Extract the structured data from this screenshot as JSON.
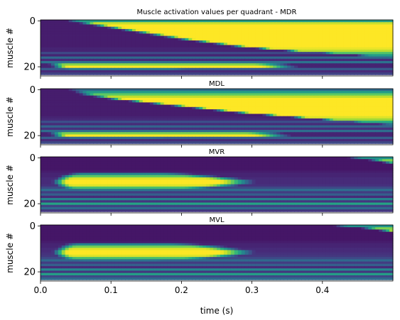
{
  "figure": {
    "title": "Muscle activation values per quadrant - MDR",
    "xlabel": "time (s)"
  },
  "chart_data": {
    "type": "heatmap",
    "colormap": "viridis",
    "value_range": [
      0,
      1
    ],
    "colormap_stops": [
      "#440154",
      "#472d7b",
      "#3b528b",
      "#2c728e",
      "#21918c",
      "#28ae80",
      "#5ec962",
      "#addc30",
      "#fde725"
    ],
    "xlim": [
      0,
      0.5
    ],
    "ylim": [
      24,
      -0.5
    ],
    "x_ticks": [
      0.0,
      0.1,
      0.2,
      0.3,
      0.4
    ],
    "x_tick_labels": [
      "0.0",
      "0.1",
      "0.2",
      "0.3",
      "0.4"
    ],
    "y_ticks": [
      0,
      20
    ],
    "y_tick_labels": [
      "0",
      "20"
    ],
    "ylabel": "muscle #",
    "rows": 24,
    "panels": [
      {
        "title": "",
        "muscles": [
          {
            "on": 0.04,
            "off": 0.5,
            "level": 0.55
          },
          {
            "on": 0.06,
            "off": 0.5,
            "level": 0.92
          },
          {
            "on": 0.08,
            "off": 0.5,
            "level": 1.0
          },
          {
            "on": 0.1,
            "off": 0.5,
            "level": 1.0
          },
          {
            "on": 0.12,
            "off": 0.5,
            "level": 1.0
          },
          {
            "on": 0.14,
            "off": 0.5,
            "level": 1.0
          },
          {
            "on": 0.16,
            "off": 0.5,
            "level": 1.0
          },
          {
            "on": 0.18,
            "off": 0.5,
            "level": 1.0
          },
          {
            "on": 0.2,
            "off": 0.5,
            "level": 1.0
          },
          {
            "on": 0.225,
            "off": 0.5,
            "level": 1.0
          },
          {
            "on": 0.25,
            "off": 0.5,
            "level": 1.0
          },
          {
            "on": 0.275,
            "off": 0.5,
            "level": 1.0
          },
          {
            "on": 0.31,
            "off": 0.5,
            "level": 0.97
          },
          {
            "on": 0.35,
            "off": 0.5,
            "level": 0.9
          },
          {
            "on": 0.4,
            "off": 0.5,
            "level": 0.72
          },
          {
            "on": 0.45,
            "off": 0.5,
            "level": 0.55
          },
          {
            "on": 0.48,
            "off": 0.5,
            "level": 0.38
          },
          {
            "on": 0.5,
            "off": 0.5,
            "level": 0.0
          },
          {
            "on": 0.5,
            "off": 0.5,
            "level": 0.0
          },
          {
            "on": 0.015,
            "off": 0.32,
            "level": 0.82
          },
          {
            "on": 0.02,
            "off": 0.33,
            "level": 1.0
          },
          {
            "on": 0.025,
            "off": 0.2,
            "level": 0.4
          },
          {
            "on": 0.5,
            "off": 0.5,
            "level": 0.0
          },
          {
            "on": 0.5,
            "off": 0.5,
            "level": 0.0
          }
        ],
        "baseline": [
          0.08,
          0.08,
          0.08,
          0.08,
          0.08,
          0.08,
          0.08,
          0.08,
          0.08,
          0.08,
          0.08,
          0.08,
          0.1,
          0.1,
          0.22,
          0.1,
          0.34,
          0.12,
          0.38,
          0.1,
          0.1,
          0.28,
          0.12,
          0.2
        ]
      },
      {
        "title": "MDL",
        "muscles": [
          {
            "on": 0.04,
            "off": 0.5,
            "level": 0.35
          },
          {
            "on": 0.05,
            "off": 0.5,
            "level": 0.55
          },
          {
            "on": 0.06,
            "off": 0.5,
            "level": 0.75
          },
          {
            "on": 0.08,
            "off": 0.5,
            "level": 0.9
          },
          {
            "on": 0.1,
            "off": 0.5,
            "level": 1.0
          },
          {
            "on": 0.13,
            "off": 0.5,
            "level": 1.0
          },
          {
            "on": 0.16,
            "off": 0.5,
            "level": 1.0
          },
          {
            "on": 0.19,
            "off": 0.5,
            "level": 1.0
          },
          {
            "on": 0.22,
            "off": 0.5,
            "level": 1.0
          },
          {
            "on": 0.25,
            "off": 0.5,
            "level": 1.0
          },
          {
            "on": 0.28,
            "off": 0.5,
            "level": 1.0
          },
          {
            "on": 0.32,
            "off": 0.5,
            "level": 1.0
          },
          {
            "on": 0.36,
            "off": 0.5,
            "level": 0.95
          },
          {
            "on": 0.4,
            "off": 0.5,
            "level": 0.85
          },
          {
            "on": 0.44,
            "off": 0.5,
            "level": 0.62
          },
          {
            "on": 0.48,
            "off": 0.5,
            "level": 0.4
          },
          {
            "on": 0.5,
            "off": 0.5,
            "level": 0.0
          },
          {
            "on": 0.5,
            "off": 0.5,
            "level": 0.0
          },
          {
            "on": 0.5,
            "off": 0.5,
            "level": 0.0
          },
          {
            "on": 0.015,
            "off": 0.31,
            "level": 0.8
          },
          {
            "on": 0.02,
            "off": 0.32,
            "level": 1.0
          },
          {
            "on": 0.025,
            "off": 0.18,
            "level": 0.35
          },
          {
            "on": 0.5,
            "off": 0.5,
            "level": 0.0
          },
          {
            "on": 0.5,
            "off": 0.5,
            "level": 0.0
          }
        ],
        "baseline": [
          0.08,
          0.08,
          0.08,
          0.08,
          0.08,
          0.08,
          0.08,
          0.08,
          0.08,
          0.08,
          0.08,
          0.08,
          0.1,
          0.12,
          0.24,
          0.12,
          0.32,
          0.14,
          0.36,
          0.1,
          0.1,
          0.3,
          0.12,
          0.22
        ]
      },
      {
        "title": "MVR",
        "muscles": [
          {
            "on": 0.44,
            "off": 0.5,
            "level": 0.5
          },
          {
            "on": 0.47,
            "off": 0.5,
            "level": 0.8
          },
          {
            "on": 0.49,
            "off": 0.5,
            "level": 1.0
          },
          {
            "on": 0.5,
            "off": 0.5,
            "level": 0.0
          },
          {
            "on": 0.5,
            "off": 0.5,
            "level": 0.0
          },
          {
            "on": 0.5,
            "off": 0.5,
            "level": 0.0
          },
          {
            "on": 0.5,
            "off": 0.5,
            "level": 0.0
          },
          {
            "on": 0.04,
            "off": 0.19,
            "level": 0.45
          },
          {
            "on": 0.03,
            "off": 0.22,
            "level": 0.75
          },
          {
            "on": 0.025,
            "off": 0.25,
            "level": 0.95
          },
          {
            "on": 0.02,
            "off": 0.27,
            "level": 1.0
          },
          {
            "on": 0.02,
            "off": 0.27,
            "level": 1.0
          },
          {
            "on": 0.025,
            "off": 0.25,
            "level": 0.95
          },
          {
            "on": 0.03,
            "off": 0.22,
            "level": 0.7
          },
          {
            "on": 0.04,
            "off": 0.18,
            "level": 0.4
          },
          {
            "on": 0.5,
            "off": 0.5,
            "level": 0.0
          },
          {
            "on": 0.5,
            "off": 0.5,
            "level": 0.0
          },
          {
            "on": 0.5,
            "off": 0.5,
            "level": 0.0
          },
          {
            "on": 0.5,
            "off": 0.5,
            "level": 0.0
          },
          {
            "on": 0.5,
            "off": 0.5,
            "level": 0.0
          },
          {
            "on": 0.5,
            "off": 0.5,
            "level": 0.0
          },
          {
            "on": 0.5,
            "off": 0.5,
            "level": 0.0
          },
          {
            "on": 0.5,
            "off": 0.5,
            "level": 0.0
          },
          {
            "on": 0.5,
            "off": 0.5,
            "level": 0.0
          }
        ],
        "baseline": [
          0.06,
          0.06,
          0.06,
          0.06,
          0.06,
          0.06,
          0.08,
          0.1,
          0.1,
          0.12,
          0.12,
          0.12,
          0.14,
          0.22,
          0.36,
          0.18,
          0.3,
          0.12,
          0.44,
          0.16,
          0.58,
          0.2,
          0.34,
          0.16
        ]
      },
      {
        "title": "MVL",
        "muscles": [
          {
            "on": 0.42,
            "off": 0.5,
            "level": 0.5
          },
          {
            "on": 0.46,
            "off": 0.5,
            "level": 0.8
          },
          {
            "on": 0.485,
            "off": 0.5,
            "level": 1.0
          },
          {
            "on": 0.5,
            "off": 0.5,
            "level": 0.0
          },
          {
            "on": 0.5,
            "off": 0.5,
            "level": 0.0
          },
          {
            "on": 0.5,
            "off": 0.5,
            "level": 0.0
          },
          {
            "on": 0.5,
            "off": 0.5,
            "level": 0.0
          },
          {
            "on": 0.5,
            "off": 0.5,
            "level": 0.0
          },
          {
            "on": 0.035,
            "off": 0.2,
            "level": 0.45
          },
          {
            "on": 0.03,
            "off": 0.23,
            "level": 0.78
          },
          {
            "on": 0.025,
            "off": 0.25,
            "level": 0.95
          },
          {
            "on": 0.02,
            "off": 0.27,
            "level": 1.0
          },
          {
            "on": 0.02,
            "off": 0.27,
            "level": 1.0
          },
          {
            "on": 0.025,
            "off": 0.25,
            "level": 0.95
          },
          {
            "on": 0.03,
            "off": 0.22,
            "level": 0.7
          },
          {
            "on": 0.04,
            "off": 0.18,
            "level": 0.38
          },
          {
            "on": 0.5,
            "off": 0.5,
            "level": 0.0
          },
          {
            "on": 0.5,
            "off": 0.5,
            "level": 0.0
          },
          {
            "on": 0.5,
            "off": 0.5,
            "level": 0.0
          },
          {
            "on": 0.5,
            "off": 0.5,
            "level": 0.0
          },
          {
            "on": 0.5,
            "off": 0.5,
            "level": 0.0
          },
          {
            "on": 0.5,
            "off": 0.5,
            "level": 0.0
          },
          {
            "on": 0.5,
            "off": 0.5,
            "level": 0.0
          },
          {
            "on": 0.5,
            "off": 0.5,
            "level": 0.0
          }
        ],
        "baseline": [
          0.06,
          0.06,
          0.06,
          0.06,
          0.06,
          0.06,
          0.06,
          0.08,
          0.1,
          0.1,
          0.12,
          0.12,
          0.14,
          0.16,
          0.22,
          0.34,
          0.18,
          0.3,
          0.12,
          0.46,
          0.16,
          0.56,
          0.22,
          0.34
        ]
      }
    ]
  }
}
